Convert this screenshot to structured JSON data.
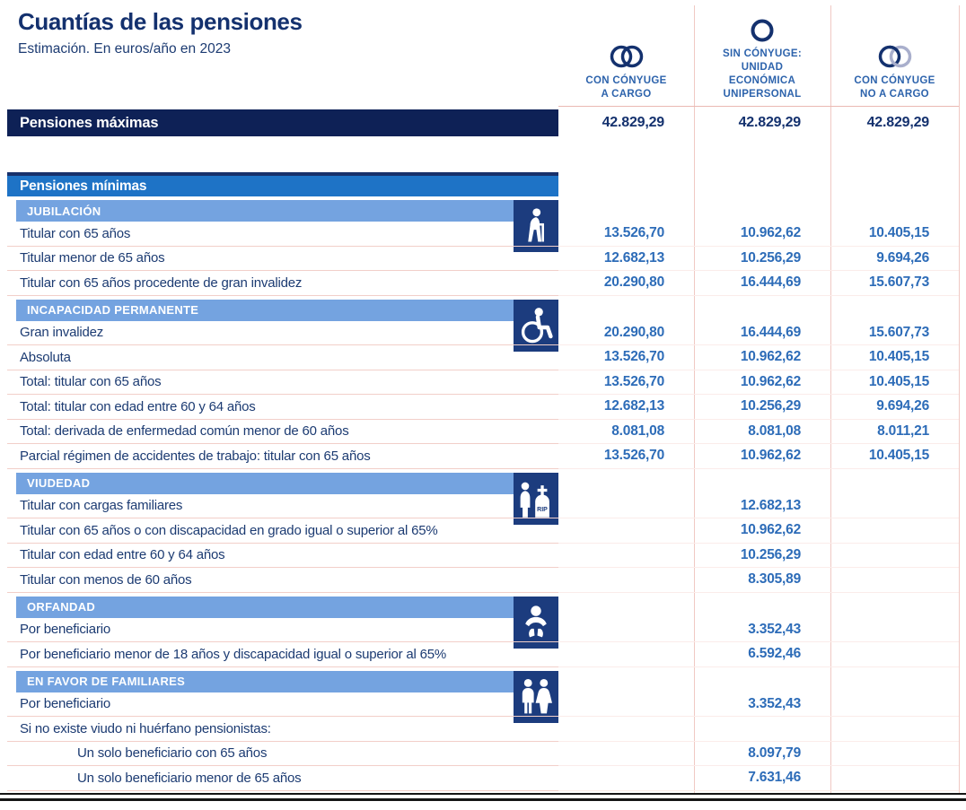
{
  "colors": {
    "navy_dark": "#0e2156",
    "navy_title": "#14316e",
    "blue_bar": "#1e73c6",
    "light_blue_bar": "#74a3e0",
    "icon_square": "#1c3c7e",
    "value_blue": "#2d6cb8",
    "header_label_blue": "#2d63ac",
    "divider_pink": "#f0c9c3",
    "ring_light": "#a9afcc"
  },
  "chart_data": {
    "type": "table",
    "title": "Cuantías de las pensiones",
    "subtitle": "Estimación. En euros/año en 2023",
    "columns": [
      {
        "icon": "rings-icon",
        "label": "CON CÓNYUGE\nA CARGO"
      },
      {
        "icon": "ring-icon",
        "label": "SIN CÓNYUGE:\nUNIDAD\nECONÓMICA\nUNIPERSONAL"
      },
      {
        "icon": "rings-light-icon",
        "label": "CON CÓNYUGE\nNO A CARGO"
      }
    ],
    "max_pensions": {
      "label": "Pensiones máximas",
      "values": [
        "42.829,29",
        "42.829,29",
        "42.829,29"
      ]
    },
    "min_pensions_header": "Pensiones mínimas",
    "sections": [
      {
        "title": "JUBILACIÓN",
        "icon": "elderly-person-icon",
        "rows": [
          {
            "label": "Titular con 65 años",
            "values": [
              "13.526,70",
              "10.962,62",
              "10.405,15"
            ]
          },
          {
            "label": "Titular menor de 65 años",
            "values": [
              "12.682,13",
              "10.256,29",
              "9.694,26"
            ]
          },
          {
            "label": "Titular con 65 años procedente de gran invalidez",
            "values": [
              "20.290,80",
              "16.444,69",
              "15.607,73"
            ]
          }
        ]
      },
      {
        "title": "INCAPACIDAD PERMANENTE",
        "icon": "wheelchair-icon",
        "rows": [
          {
            "label": "Gran invalidez",
            "values": [
              "20.290,80",
              "16.444,69",
              "15.607,73"
            ]
          },
          {
            "label": "Absoluta",
            "values": [
              "13.526,70",
              "10.962,62",
              "10.405,15"
            ]
          },
          {
            "label": "Total: titular con 65 años",
            "values": [
              "13.526,70",
              "10.962,62",
              "10.405,15"
            ]
          },
          {
            "label": "Total: titular con edad entre 60 y 64 años",
            "values": [
              "12.682,13",
              "10.256,29",
              "9.694,26"
            ]
          },
          {
            "label": "Total: derivada de enfermedad común menor de 60 años",
            "values": [
              "8.081,08",
              "8.081,08",
              "8.011,21"
            ]
          },
          {
            "label": "Parcial régimen de accidentes de trabajo: titular con 65 años",
            "values": [
              "13.526,70",
              "10.962,62",
              "10.405,15"
            ]
          }
        ]
      },
      {
        "title": "VIUDEDAD",
        "icon": "widow-tombstone-icon",
        "rows": [
          {
            "label": "Titular con cargas familiares",
            "values": [
              "",
              "12.682,13",
              ""
            ]
          },
          {
            "label": "Titular con 65 años o con discapacidad en grado igual o superior al 65%",
            "values": [
              "",
              "10.962,62",
              ""
            ]
          },
          {
            "label": "Titular con edad entre 60 y 64 años",
            "values": [
              "",
              "10.256,29",
              ""
            ]
          },
          {
            "label": "Titular con menos de 60 años",
            "values": [
              "",
              "8.305,89",
              ""
            ]
          }
        ]
      },
      {
        "title": "ORFANDAD",
        "icon": "child-icon",
        "rows": [
          {
            "label": "Por beneficiario",
            "values": [
              "",
              "3.352,43",
              ""
            ]
          },
          {
            "label": "Por beneficiario menor de 18 años y discapacidad igual o superior al 65%",
            "values": [
              "",
              "6.592,46",
              ""
            ]
          }
        ]
      },
      {
        "title": "EN FAVOR DE FAMILIARES",
        "icon": "family-icon",
        "rows": [
          {
            "label": "Por beneficiario",
            "values": [
              "",
              "3.352,43",
              ""
            ]
          },
          {
            "label": "Si no existe viudo ni huérfano pensionistas:",
            "values": [
              "",
              "",
              ""
            ]
          },
          {
            "label": "Un solo beneficiario con 65 años",
            "values": [
              "",
              "8.097,79",
              ""
            ],
            "indent": true
          },
          {
            "label": "Un solo beneficiario menor de 65 años",
            "values": [
              "",
              "7.631,46",
              ""
            ],
            "indent": true
          }
        ]
      }
    ]
  }
}
